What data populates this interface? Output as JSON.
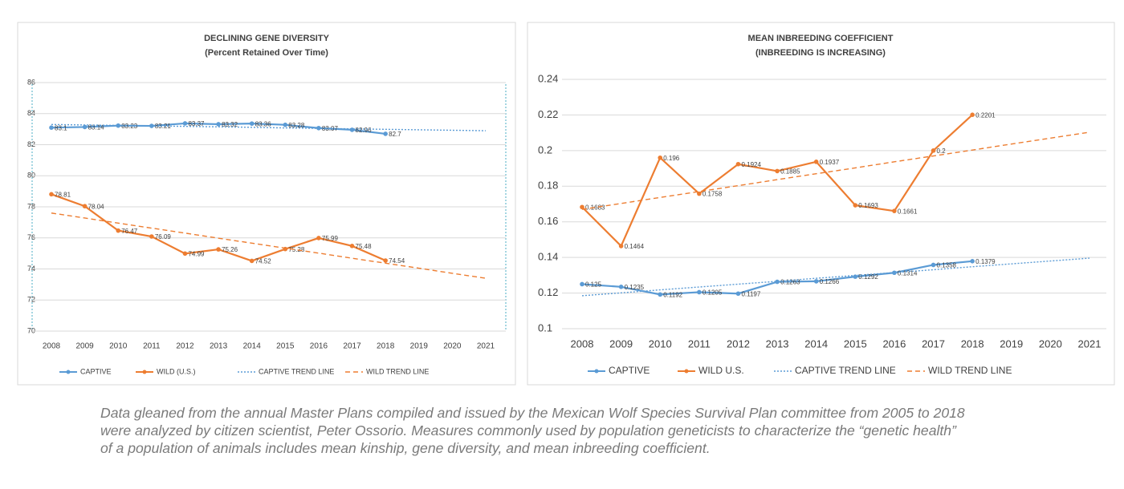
{
  "chart_data": [
    {
      "type": "line",
      "title": "DECLINING GENE DIVERSITY",
      "subtitle": "(Percent Retained Over Time)",
      "categories": [
        "2008",
        "2009",
        "2010",
        "2011",
        "2012",
        "2013",
        "2014",
        "2015",
        "2016",
        "2017",
        "2018",
        "2019",
        "2020",
        "2021"
      ],
      "ylim": [
        70,
        86
      ],
      "yticks": [
        70,
        72,
        74,
        76,
        78,
        80,
        82,
        84,
        86
      ],
      "grid": true,
      "legend": "bottom",
      "series": [
        {
          "name": "CAPTIVE",
          "color": "#5b9bd5",
          "style": "solid",
          "marker": true,
          "data_labels": true,
          "values": [
            83.1,
            83.14,
            83.23,
            83.21,
            83.37,
            83.32,
            83.36,
            83.28,
            83.07,
            82.96,
            82.7,
            null,
            null,
            null
          ]
        },
        {
          "name": "WILD (U.S.)",
          "color": "#ed7d31",
          "style": "solid",
          "marker": true,
          "data_labels": true,
          "values": [
            78.81,
            78.04,
            76.47,
            76.09,
            74.99,
            75.26,
            74.52,
            75.28,
            75.99,
            75.48,
            74.54,
            null,
            null,
            null
          ]
        },
        {
          "name": "CAPTIVE TREND LINE",
          "color": "#5b9bd5",
          "style": "dotted",
          "marker": false,
          "data_labels": false,
          "values": [
            83.3,
            83.27,
            83.24,
            83.21,
            83.18,
            83.15,
            83.12,
            83.08,
            83.05,
            83.02,
            82.99,
            82.96,
            82.93,
            82.9
          ]
        },
        {
          "name": "WILD TREND LINE",
          "color": "#ed7d31",
          "style": "dashed",
          "marker": false,
          "data_labels": false,
          "values": [
            77.6,
            77.28,
            76.95,
            76.63,
            76.31,
            75.98,
            75.66,
            75.34,
            75.02,
            74.69,
            74.37,
            74.05,
            73.72,
            73.4
          ]
        }
      ]
    },
    {
      "type": "line",
      "title": "MEAN INBREEDING COEFFICIENT",
      "subtitle": "(INBREEDING IS INCREASING)",
      "categories": [
        "2008",
        "2009",
        "2010",
        "2011",
        "2012",
        "2013",
        "2014",
        "2015",
        "2016",
        "2017",
        "2018",
        "2019",
        "2020",
        "2021"
      ],
      "ylim": [
        0.1,
        0.24
      ],
      "yticks": [
        0.1,
        0.12,
        0.14,
        0.16,
        0.18,
        0.2,
        0.22,
        0.24
      ],
      "grid": true,
      "legend": "bottom",
      "series": [
        {
          "name": "CAPTIVE",
          "color": "#5b9bd5",
          "style": "solid",
          "marker": true,
          "data_labels": true,
          "values": [
            0.125,
            0.1235,
            0.1192,
            0.1205,
            0.1197,
            0.1263,
            0.1266,
            0.1292,
            0.1314,
            0.1358,
            0.1379,
            null,
            null,
            null
          ]
        },
        {
          "name": "WILD U.S.",
          "color": "#ed7d31",
          "style": "solid",
          "marker": true,
          "data_labels": true,
          "values": [
            0.1683,
            0.1464,
            0.196,
            0.1758,
            0.1924,
            0.1885,
            0.1937,
            0.1693,
            0.1661,
            0.2,
            0.2201,
            null,
            null,
            null
          ]
        },
        {
          "name": "CAPTIVE TREND LINE",
          "color": "#5b9bd5",
          "style": "dotted",
          "marker": false,
          "data_labels": false,
          "values": [
            0.1185,
            0.1201,
            0.1218,
            0.1234,
            0.125,
            0.1266,
            0.1283,
            0.1299,
            0.1315,
            0.1331,
            0.1348,
            0.1364,
            0.138,
            0.1396
          ]
        },
        {
          "name": "WILD TREND LINE",
          "color": "#ed7d31",
          "style": "dashed",
          "marker": false,
          "data_labels": false,
          "values": [
            0.167,
            0.1703,
            0.1737,
            0.177,
            0.1803,
            0.1837,
            0.187,
            0.1903,
            0.1937,
            0.197,
            0.2003,
            0.2037,
            0.207,
            0.2103
          ]
        }
      ]
    }
  ],
  "caption": "Data gleaned from the annual Master Plans compiled and issued by the Mexican Wolf Species Survival Plan committee from 2005 to 2018 were analyzed by citizen scientist, Peter Ossorio. Measures commonly used by population geneticists to characterize the “genetic health” of a population of animals includes mean kinship, gene diversity, and mean inbreeding coefficient."
}
